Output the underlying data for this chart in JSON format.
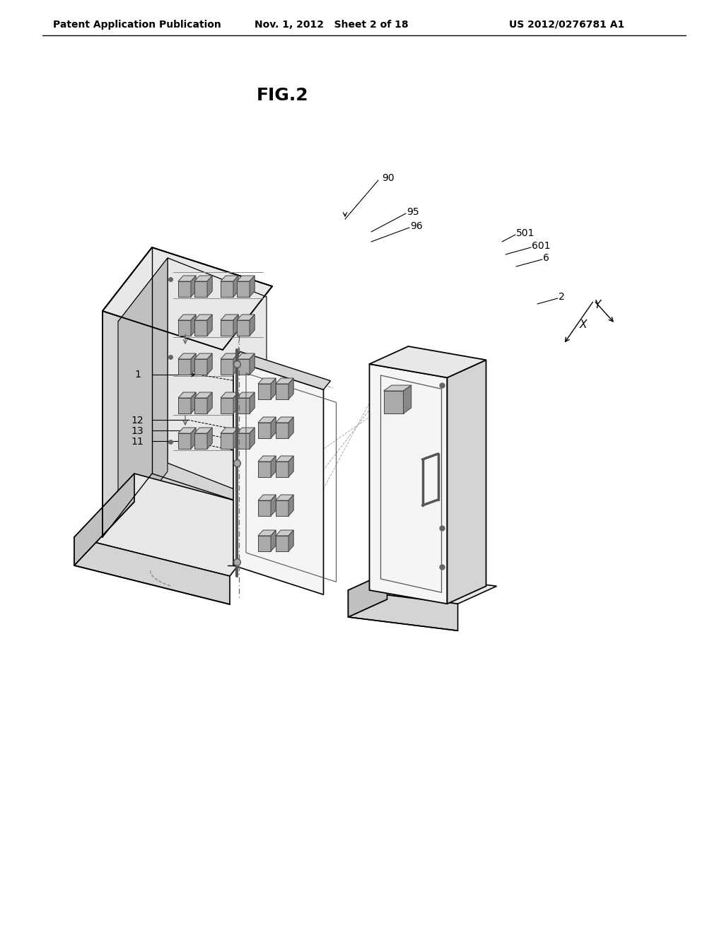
{
  "header_left": "Patent Application Publication",
  "header_center": "Nov. 1, 2012   Sheet 2 of 18",
  "header_right": "US 2012/0276781 A1",
  "fig_title": "FIG.2",
  "background_color": "#ffffff",
  "line_color": "#000000",
  "gray1": "#e8e8e8",
  "gray2": "#d4d4d4",
  "gray3": "#c0c0c0",
  "gray4": "#f5f5f5"
}
